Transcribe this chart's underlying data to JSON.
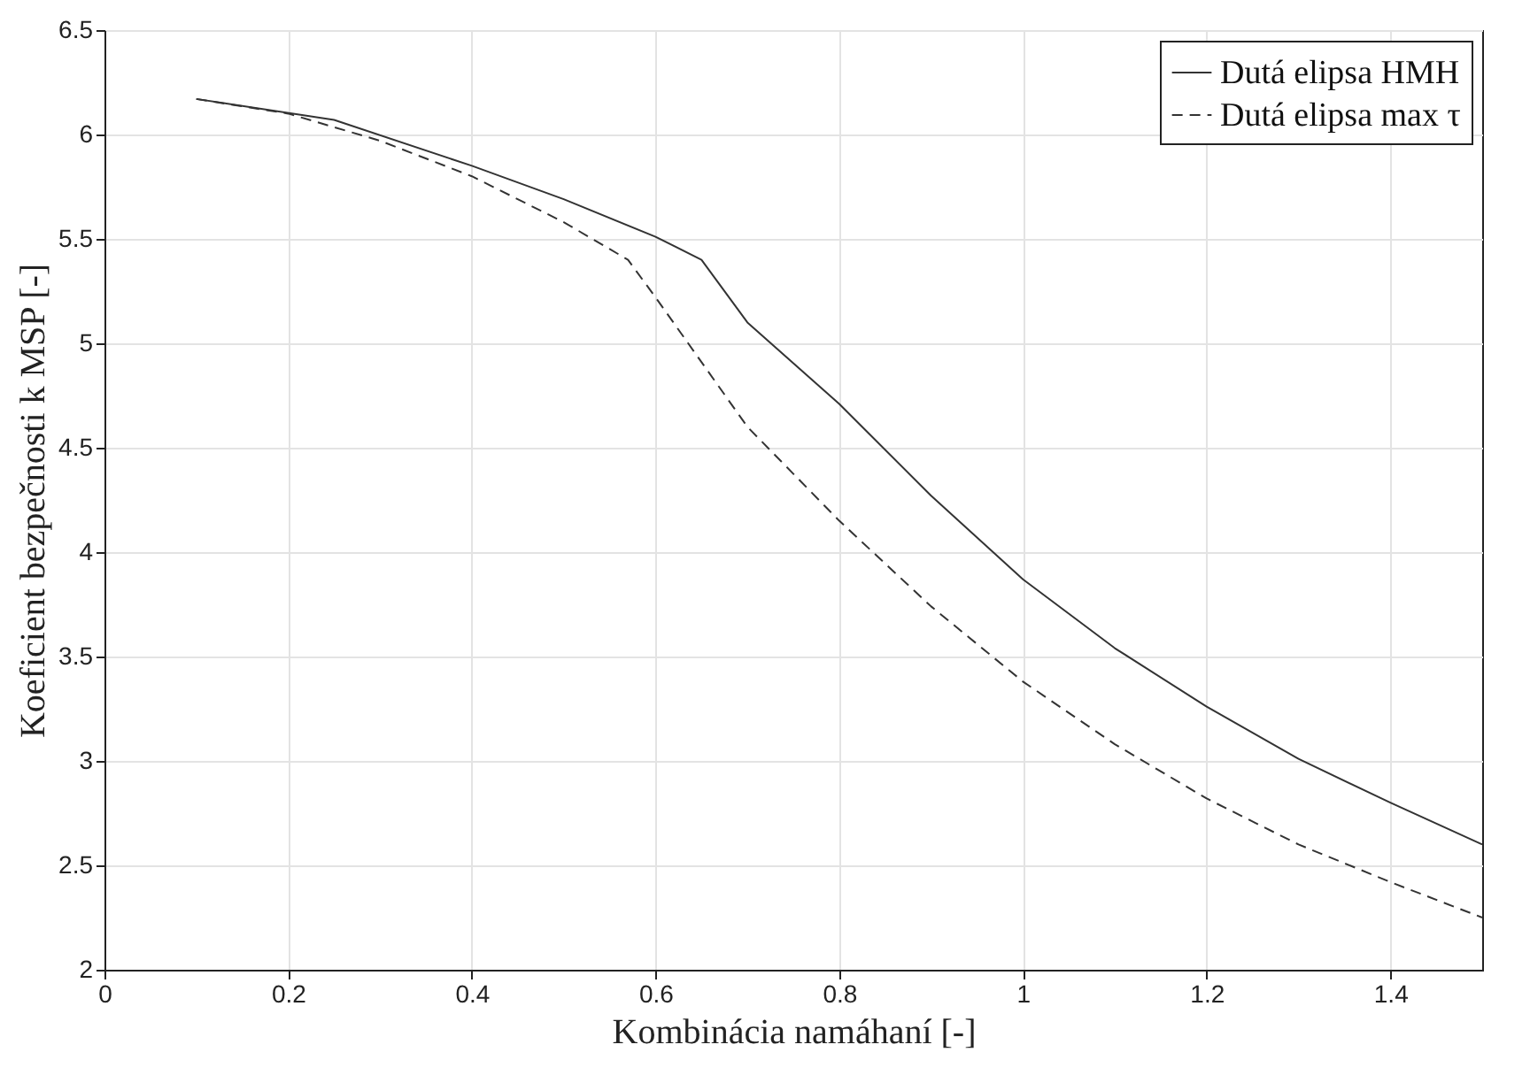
{
  "chart_data": {
    "type": "line",
    "xlabel": "Kombinácia namáhaní [-]",
    "ylabel": "Koeficient bezpečnosti k MSP [-]",
    "xlim": [
      0,
      1.5
    ],
    "ylim": [
      2,
      6.5
    ],
    "xticks": [
      0,
      0.2,
      0.4,
      0.6,
      0.8,
      1,
      1.2,
      1.4
    ],
    "yticks": [
      2,
      2.5,
      3,
      3.5,
      4,
      4.5,
      5,
      5.5,
      6,
      6.5
    ],
    "grid": true,
    "legend": "top right",
    "marker": "none",
    "series": [
      {
        "name": "Dutá elipsa HMH",
        "color": "#333333",
        "line_style": "solid",
        "x": [
          0.1,
          0.25,
          0.4,
          0.5,
          0.6,
          0.65,
          0.7,
          0.8,
          0.9,
          1.0,
          1.1,
          1.2,
          1.3,
          1.4,
          1.5
        ],
        "values": [
          6.17,
          6.07,
          5.85,
          5.69,
          5.51,
          5.4,
          5.1,
          4.71,
          4.27,
          3.87,
          3.54,
          3.26,
          3.01,
          2.8,
          2.6
        ]
      },
      {
        "name": "Dutá elipsa max τ",
        "color": "#333333",
        "line_style": "dashed",
        "x": [
          0.1,
          0.2,
          0.3,
          0.4,
          0.5,
          0.57,
          0.6,
          0.7,
          0.8,
          0.9,
          1.0,
          1.1,
          1.2,
          1.3,
          1.4,
          1.5
        ],
        "values": [
          6.17,
          6.1,
          5.97,
          5.8,
          5.58,
          5.4,
          5.22,
          4.6,
          4.15,
          3.74,
          3.38,
          3.08,
          2.82,
          2.6,
          2.42,
          2.25
        ]
      }
    ]
  }
}
